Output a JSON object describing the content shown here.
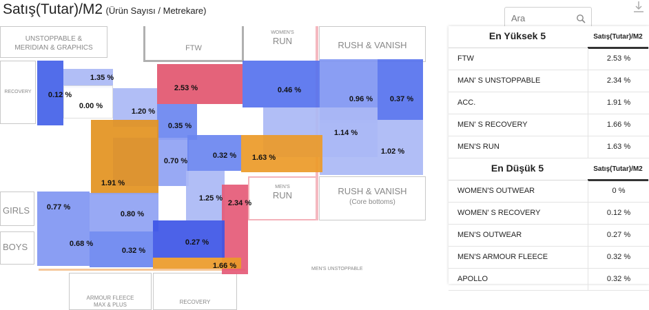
{
  "header": {
    "title": "Satış(Tutar)/M2",
    "subtitle": "(Ürün Sayısı / Metrekare)"
  },
  "search": {
    "placeholder": "Ara",
    "icon": "search-icon"
  },
  "toolbar": {
    "download_icon": "download-icon"
  },
  "floorplan": {
    "labels": {
      "unstoppable": "UNSTOPPABLE &",
      "meridian": "MERIDIAN & GRAPHICS",
      "womens_run_1": "WOMEN'S",
      "womens_run_2": "RUN",
      "ftw": "FTW",
      "rush_vanish_top": "RUSH & VANISH",
      "recovery_left": "RECOVERY",
      "girls": "GIRLS",
      "boys": "BOYS",
      "mens_run_1": "MEN'S",
      "mens_run_2": "RUN",
      "rush_vanish_bottom": "RUSH & VANISH",
      "core_bottoms": "(Core bottoms)",
      "mens_unstoppable": "MEN'S UNSTOPPABLE",
      "armour_fleece_1": "ARMOUR FLEECE",
      "armour_fleece_2": "MAX & PLUS",
      "recovery_bottom": "RECOVERY"
    },
    "zones": [
      {
        "value": "1.35 %",
        "color": "#aab8f5"
      },
      {
        "value": "0.12 %",
        "color": "#4361e8"
      },
      {
        "value": "0.00 %",
        "color": "#ffffff"
      },
      {
        "value": "1.20 %",
        "color": "#aab8f5"
      },
      {
        "value": "2.53 %",
        "color": "#e2566f"
      },
      {
        "value": "0.46 %",
        "color": "#5672ee"
      },
      {
        "value": "0.96 %",
        "color": "#8096f2"
      },
      {
        "value": "0.37 %",
        "color": "#5672ee"
      },
      {
        "value": "0.35 %",
        "color": "#6a85f0"
      },
      {
        "value": "1.14 %",
        "color": "#aab8f5"
      },
      {
        "value": "1.02 %",
        "color": "#aab8f5"
      },
      {
        "value": "0.70 %",
        "color": "#8fa2f3"
      },
      {
        "value": "0.32 %",
        "color": "#6a85f0"
      },
      {
        "value": "1.63 %",
        "color": "#ec9a28"
      },
      {
        "value": "1.91 %",
        "color": "#e3921f"
      },
      {
        "value": "1.25 %",
        "color": "#aab8f5"
      },
      {
        "value": "2.34 %",
        "color": "#e55a77"
      },
      {
        "value": "0.77 %",
        "color": "#8096f2"
      },
      {
        "value": "0.80 %",
        "color": "#8fa2f3"
      },
      {
        "value": "0.68 %",
        "color": "#8096f2"
      },
      {
        "value": "0.32 %",
        "color": "#6a85f0"
      },
      {
        "value": "0.27 %",
        "color": "#3d55e6"
      },
      {
        "value": "1.66 %",
        "color": "#ec9a28"
      }
    ]
  },
  "top5": {
    "title": "En Yüksek 5",
    "column": "Satış(Tutar)/M2",
    "rows": [
      {
        "name": "FTW",
        "value": "2.53 %"
      },
      {
        "name": "MAN' S UNSTOPPABLE",
        "value": "2.34 %"
      },
      {
        "name": "ACC.",
        "value": "1.91 %"
      },
      {
        "name": "MEN' S RECOVERY",
        "value": "1.66 %"
      },
      {
        "name": "MEN'S RUN",
        "value": "1.63 %"
      }
    ]
  },
  "bottom5": {
    "title": "En Düşük 5",
    "column": "Satış(Tutar)/M2",
    "rows": [
      {
        "name": "WOMEN'S OUTWEAR",
        "value": "0 %"
      },
      {
        "name": "WOMEN' S RECOVERY",
        "value": "0.12 %"
      },
      {
        "name": "MEN'S OUTWEAR",
        "value": "0.27 %"
      },
      {
        "name": "MEN'S ARMOUR FLEECE",
        "value": "0.32 %"
      },
      {
        "name": "APOLLO",
        "value": "0.32 %"
      }
    ]
  }
}
